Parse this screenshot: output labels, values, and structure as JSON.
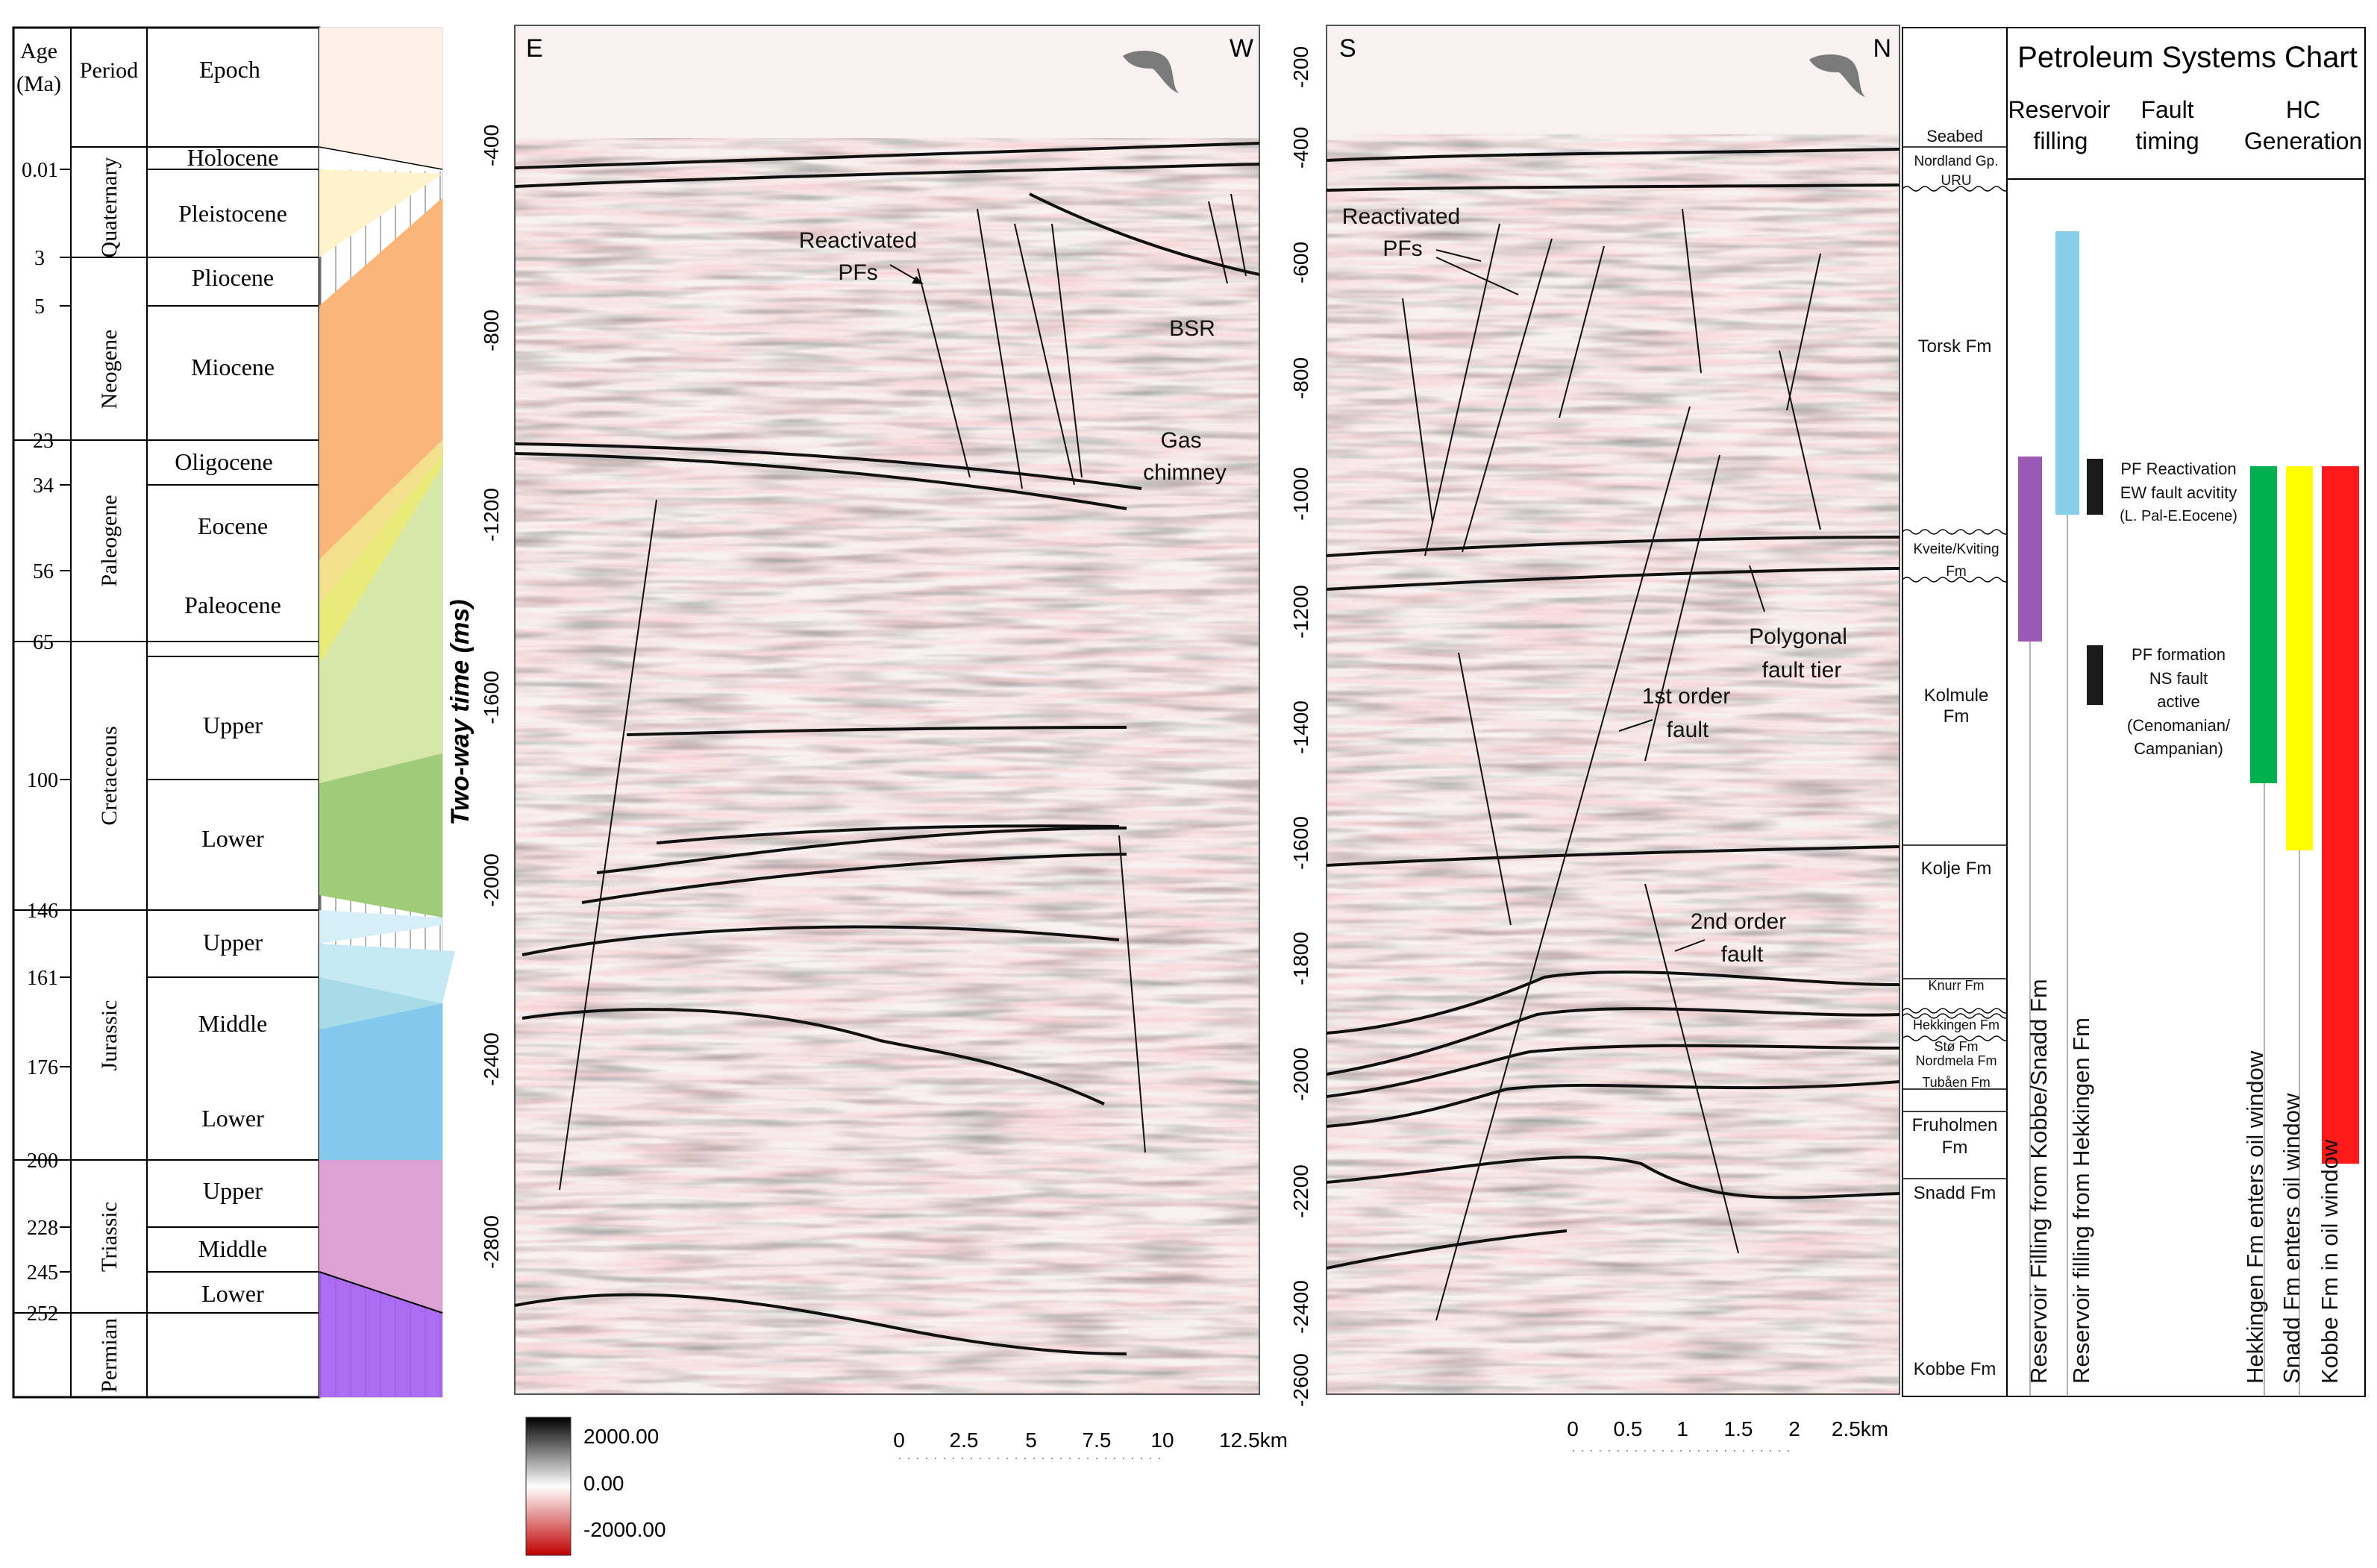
{
  "stratigraphy": {
    "headers": {
      "age": "Age",
      "age_unit": "(Ma)",
      "period": "Period",
      "epoch": "Epoch"
    },
    "ages": [
      "0.01",
      "3",
      "5",
      "23",
      "34",
      "56",
      "65",
      "100",
      "146",
      "161",
      "176",
      "200",
      "228",
      "245",
      "252"
    ],
    "periods": [
      "Quaternary",
      "Neogene",
      "Paleogene",
      "Cretaceous",
      "Jurassic",
      "Triassic",
      "Permian"
    ],
    "epochs": [
      "Holocene",
      "Pleistocene",
      "Pliocene",
      "Miocene",
      "Oligocene",
      "Eocene",
      "Paleocene",
      "Upper",
      "Lower",
      "Upper",
      "Middle",
      "Lower",
      "Upper",
      "Middle",
      "Lower"
    ],
    "colors": {
      "quaternary": "#fff2cc",
      "neogene": "#fbb57a",
      "paleogene": "#e9e979",
      "cretaceous_upper": "#d7e7a8",
      "cretaceous_lower": "#9fcb7a",
      "jurassic_upper": "#d6eef7",
      "jurassic_middle": "#a8dbe8",
      "jurassic_lower": "#83c9ee",
      "triassic": "#dea1d4",
      "permian": "#a35cf2"
    }
  },
  "seismic_ew": {
    "left_label": "E",
    "right_label": "W",
    "y_axis_title": "Two-way time (ms)",
    "y_ticks": [
      "-400",
      "-800",
      "-1200",
      "-1600",
      "-2000",
      "-2400",
      "-2800"
    ],
    "annotations": {
      "reactivated_line1": "Reactivated",
      "reactivated_line2": "PFs",
      "bsr": "BSR",
      "gas_line1": "Gas",
      "gas_line2": "chimney"
    },
    "scale_ticks": [
      "0",
      "2.5",
      "5",
      "7.5",
      "10",
      "12.5km"
    ]
  },
  "colorbar": {
    "max": "2000.00",
    "mid": "0.00",
    "min": "-2000.00"
  },
  "seismic_sn": {
    "left_label": "S",
    "right_label": "N",
    "y_ticks": [
      "-200",
      "-400",
      "-600",
      "-800",
      "-1000",
      "-1200",
      "-1400",
      "-1600",
      "-1800",
      "-2000",
      "-2200",
      "-2400",
      "-2600"
    ],
    "annotations": {
      "reactivated_line1": "Reactivated",
      "reactivated_line2": "PFs",
      "polygonal_line1": "Polygonal",
      "polygonal_line2": "fault tier",
      "first_line1": "1st order",
      "first_line2": "fault",
      "second_line1": "2nd order",
      "second_line2": "fault"
    },
    "scale_ticks": [
      "0",
      "0.5",
      "1",
      "1.5",
      "2",
      "2.5km"
    ]
  },
  "formations": [
    "Seabed",
    "Nordland Gp.",
    "URU",
    "Torsk Fm",
    "Kveite/Kviting",
    "Fm",
    "Kolmule",
    "Fm",
    "Kolje Fm",
    "Knurr Fm",
    "Hekkingen Fm",
    "Stø Fm",
    "Nordmela Fm",
    "Tubåen Fm",
    "Fruholmen",
    "Fm",
    "Snadd Fm",
    "Kobbe Fm"
  ],
  "petroleum_chart": {
    "title": "Petroleum Systems Chart",
    "col_reservoir_1": "Reservoir",
    "col_reservoir_2": "filling",
    "col_fault_1": "Fault",
    "col_fault_2": "timing",
    "col_hc_1": "HC",
    "col_hc_2": "Generation",
    "bar_labels": [
      "Reservoir Filling from Kobbe/Snadd Fm",
      "Reservoir filling from Hekkingen Fm",
      "Hekkingen Fm enters oil window",
      "Snadd Fm enters oil window",
      "Kobbe Fm in oil window"
    ],
    "pf_reactivation": [
      "PF Reactivation",
      "EW fault acvitity",
      "(L. Pal-E.Eocene)"
    ],
    "pf_formation": [
      "PF formation",
      "NS fault",
      "active",
      "(Cenomanian/",
      "Campanian)"
    ],
    "colors": {
      "kobbe_snadd_fill": "#9b59b6",
      "hekkingen_fill": "#87ceeb",
      "fault": "#1a1a1a",
      "hekkingen_oil": "#00b050",
      "snadd_oil": "#ffff00",
      "kobbe_oil": "#ff1a1a"
    }
  }
}
